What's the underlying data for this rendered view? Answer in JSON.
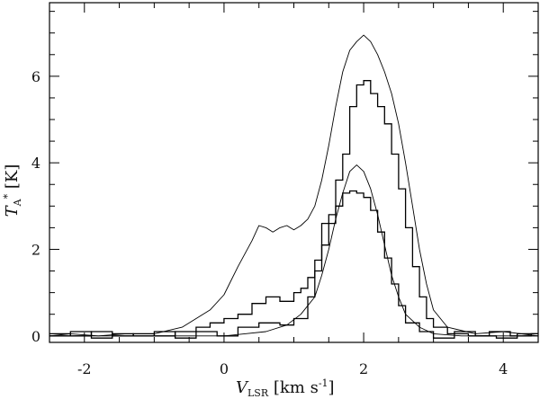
{
  "chart_data": {
    "type": "line",
    "title": "",
    "xlabel": {
      "main": "V",
      "sub": "LSR",
      "unit": " [km s",
      "exp": "-1",
      "close": "]"
    },
    "ylabel": {
      "main": "T",
      "sub": "A",
      "sup": "*",
      "unit": " [K]"
    },
    "xlim": [
      -2.5,
      4.5
    ],
    "ylim": [
      -0.15,
      7.7
    ],
    "xticks": [
      -2,
      0,
      2,
      4
    ],
    "xtick_labels": [
      "-2",
      "0",
      "2",
      "4"
    ],
    "yticks": [
      0,
      2,
      4,
      6
    ],
    "ytick_labels": [
      "0",
      "2",
      "4",
      "6"
    ],
    "grid": false,
    "series": [
      {
        "style": "thin-line",
        "x": [
          -2.5,
          -2.2,
          -1.8,
          -1.4,
          -1.0,
          -0.6,
          -0.4,
          -0.2,
          0.0,
          0.2,
          0.4,
          0.5,
          0.6,
          0.7,
          0.8,
          0.9,
          1.0,
          1.1,
          1.2,
          1.3,
          1.4,
          1.5,
          1.6,
          1.7,
          1.8,
          1.9,
          2.0,
          2.1,
          2.2,
          2.3,
          2.4,
          2.5,
          2.6,
          2.7,
          2.8,
          2.9,
          3.0,
          3.2,
          3.6,
          4.0,
          4.5
        ],
        "y": [
          0.0,
          0.05,
          0.0,
          0.05,
          0.05,
          0.2,
          0.4,
          0.6,
          0.95,
          1.6,
          2.2,
          2.55,
          2.5,
          2.4,
          2.5,
          2.55,
          2.45,
          2.55,
          2.7,
          3.0,
          3.6,
          4.4,
          5.3,
          6.1,
          6.6,
          6.8,
          6.95,
          6.8,
          6.5,
          6.1,
          5.6,
          4.9,
          4.0,
          3.0,
          2.0,
          1.2,
          0.6,
          0.2,
          0.05,
          0.1,
          0.0
        ]
      },
      {
        "style": "histogram",
        "x": [
          -2.5,
          -2.2,
          -1.9,
          -1.6,
          -1.3,
          -1.0,
          -0.7,
          -0.4,
          -0.2,
          0.0,
          0.2,
          0.4,
          0.6,
          0.8,
          1.0,
          1.1,
          1.2,
          1.3,
          1.4,
          1.5,
          1.6,
          1.7,
          1.8,
          1.9,
          2.0,
          2.1,
          2.2,
          2.3,
          2.4,
          2.5,
          2.6,
          2.7,
          2.8,
          2.9,
          3.0,
          3.2,
          3.5,
          3.8,
          4.1,
          4.4
        ],
        "y": [
          0.05,
          0.0,
          0.1,
          0.0,
          0.05,
          0.0,
          0.1,
          0.2,
          0.3,
          0.4,
          0.5,
          0.75,
          0.9,
          0.8,
          1.0,
          1.1,
          1.35,
          1.75,
          2.6,
          2.8,
          3.6,
          4.2,
          5.3,
          5.8,
          5.9,
          5.6,
          5.3,
          4.9,
          4.2,
          3.4,
          2.5,
          1.6,
          0.9,
          0.4,
          0.2,
          0.05,
          0.0,
          0.1,
          0.0,
          0.05
        ]
      },
      {
        "style": "thin-line",
        "x": [
          -2.5,
          -2.0,
          -1.5,
          -1.0,
          -0.5,
          0.0,
          0.3,
          0.6,
          0.9,
          1.1,
          1.3,
          1.4,
          1.5,
          1.6,
          1.7,
          1.8,
          1.9,
          2.0,
          2.1,
          2.2,
          2.3,
          2.4,
          2.5,
          2.6,
          2.8,
          3.0,
          3.4,
          4.0,
          4.5
        ],
        "y": [
          0.0,
          0.0,
          0.0,
          0.0,
          0.0,
          0.0,
          0.05,
          0.1,
          0.25,
          0.5,
          0.9,
          1.4,
          2.0,
          2.7,
          3.3,
          3.8,
          3.95,
          3.8,
          3.4,
          2.8,
          2.1,
          1.4,
          0.9,
          0.5,
          0.2,
          0.05,
          0.0,
          0.0,
          0.0
        ]
      },
      {
        "style": "histogram",
        "x": [
          -2.5,
          -2.2,
          -1.9,
          -1.6,
          -1.3,
          -1.0,
          -0.7,
          -0.4,
          -0.1,
          0.2,
          0.5,
          0.8,
          1.0,
          1.2,
          1.3,
          1.4,
          1.5,
          1.6,
          1.7,
          1.8,
          1.9,
          2.0,
          2.1,
          2.2,
          2.3,
          2.4,
          2.5,
          2.6,
          2.8,
          3.0,
          3.3,
          3.6,
          3.9,
          4.2
        ],
        "y": [
          0.0,
          0.1,
          -0.05,
          0.05,
          0.0,
          0.1,
          -0.05,
          0.1,
          0.0,
          0.2,
          0.3,
          0.25,
          0.4,
          0.9,
          1.5,
          2.1,
          2.6,
          3.0,
          3.3,
          3.35,
          3.3,
          3.2,
          2.9,
          2.4,
          1.8,
          1.2,
          0.7,
          0.3,
          0.1,
          -0.05,
          0.1,
          0.0,
          -0.05,
          0.05
        ]
      }
    ]
  }
}
